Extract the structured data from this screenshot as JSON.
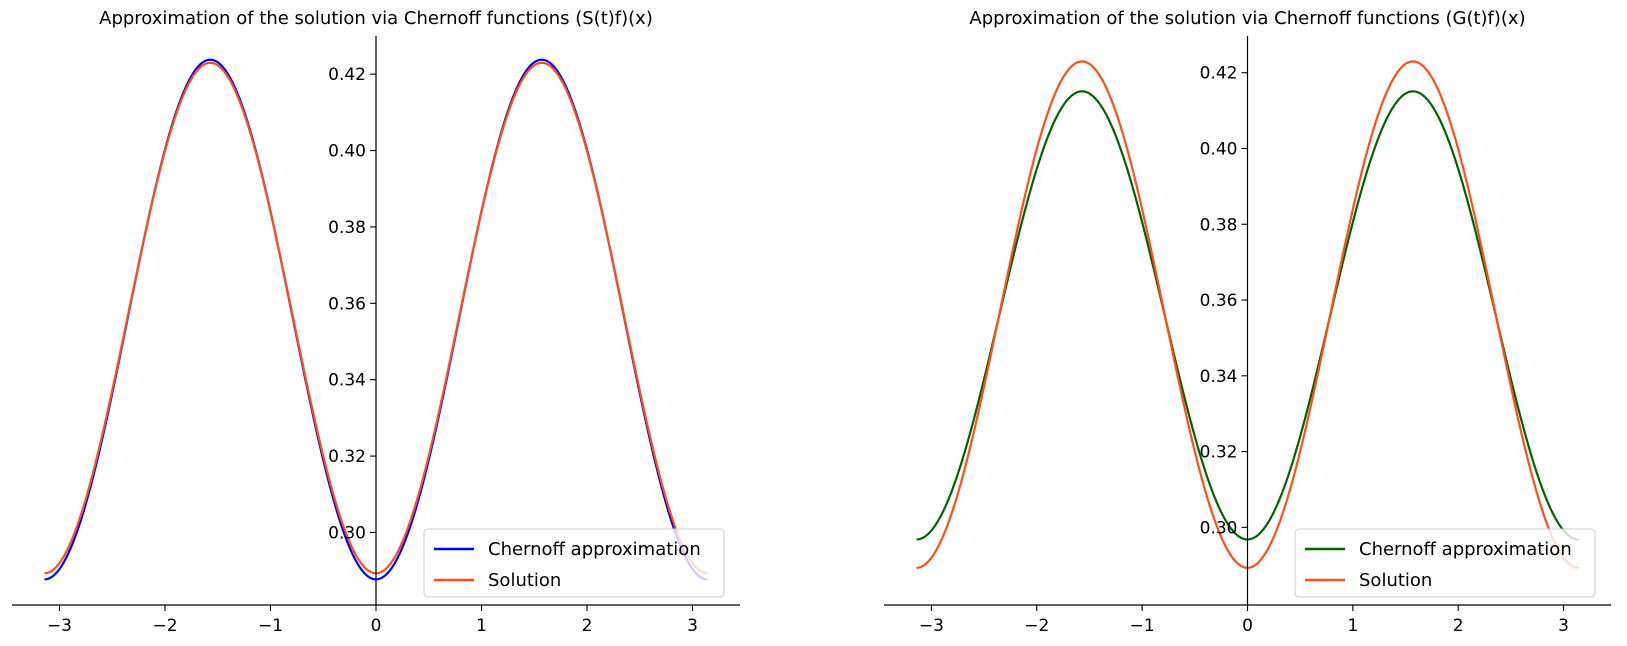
{
  "chart_data": [
    {
      "type": "line",
      "title": "Approximation of the solution via Chernoff functions (S(t)f)(x)",
      "xlabel": "",
      "ylabel": "",
      "xlim": [
        -3.45,
        3.45
      ],
      "ylim": [
        0.281,
        0.43
      ],
      "xticks": [
        -3,
        -2,
        -1,
        0,
        1,
        2,
        3
      ],
      "xtick_labels": [
        "−3",
        "−2",
        "−1",
        "0",
        "1",
        "2",
        "3"
      ],
      "yticks": [
        0.3,
        0.32,
        0.34,
        0.36,
        0.38,
        0.4,
        0.42
      ],
      "ytick_labels": [
        "0.30",
        "0.32",
        "0.34",
        "0.36",
        "0.38",
        "0.40",
        "0.42"
      ],
      "spines": "centered at zero (left spine at x=0, bottom spine at bottom)",
      "legend_position": "bottom-right",
      "x_range": [
        -3.1416,
        3.1416
      ],
      "series": [
        {
          "name": "Chernoff approximation",
          "color": "#0000ff",
          "formula": "A + B*sin(x)^2",
          "A": 0.2877,
          "B": 0.1361,
          "samples": [
            [
              -3.14,
              0.288
            ],
            [
              -2.5,
              0.336
            ],
            [
              -1.5708,
              0.4238
            ],
            [
              -0.5,
              0.319
            ],
            [
              0,
              0.2877
            ],
            [
              0.5,
              0.319
            ],
            [
              1.5708,
              0.4238
            ],
            [
              2.5,
              0.336
            ],
            [
              3.14,
              0.288
            ]
          ]
        },
        {
          "name": "Solution",
          "color": "#ff4f19",
          "formula": "A + B*sin(x)^2",
          "A": 0.2893,
          "B": 0.1337,
          "samples": [
            [
              -3.14,
              0.2893
            ],
            [
              -2.5,
              0.337
            ],
            [
              -1.5708,
              0.423
            ],
            [
              -0.5,
              0.32
            ],
            [
              0,
              0.2893
            ],
            [
              0.5,
              0.32
            ],
            [
              1.5708,
              0.423
            ],
            [
              2.5,
              0.337
            ],
            [
              3.14,
              0.2893
            ]
          ]
        }
      ]
    },
    {
      "type": "line",
      "title": "Approximation of the solution via Chernoff functions (G(t)f)(x)",
      "xlabel": "",
      "ylabel": "",
      "xlim": [
        -3.45,
        3.45
      ],
      "ylim": [
        0.2795,
        0.4297
      ],
      "xticks": [
        -3,
        -2,
        -1,
        0,
        1,
        2,
        3
      ],
      "xtick_labels": [
        "−3",
        "−2",
        "−1",
        "0",
        "1",
        "2",
        "3"
      ],
      "yticks": [
        0.3,
        0.32,
        0.34,
        0.36,
        0.38,
        0.4,
        0.42
      ],
      "ytick_labels": [
        "0.30",
        "0.32",
        "0.34",
        "0.36",
        "0.38",
        "0.40",
        "0.42"
      ],
      "spines": "centered at zero (left spine at x=0, bottom spine at bottom)",
      "legend_position": "bottom-right",
      "x_range": [
        -3.1416,
        3.1416
      ],
      "series": [
        {
          "name": "Chernoff approximation",
          "color": "#006400",
          "formula": "A + B*sin(x)^2",
          "A": 0.2968,
          "B": 0.1183,
          "samples": [
            [
              -3.14,
              0.2968
            ],
            [
              -2.5,
              0.338
            ],
            [
              -1.5708,
              0.4151
            ],
            [
              -0.5,
              0.324
            ],
            [
              0,
              0.2968
            ],
            [
              0.5,
              0.324
            ],
            [
              1.5708,
              0.4151
            ],
            [
              2.5,
              0.338
            ],
            [
              3.14,
              0.2968
            ]
          ]
        },
        {
          "name": "Solution",
          "color": "#ff4f19",
          "formula": "A + B*sin(x)^2",
          "A": 0.2893,
          "B": 0.1337,
          "samples": [
            [
              -3.14,
              0.2893
            ],
            [
              -2.5,
              0.337
            ],
            [
              -1.5708,
              0.423
            ],
            [
              -0.5,
              0.32
            ],
            [
              0,
              0.2893
            ],
            [
              0.5,
              0.32
            ],
            [
              1.5708,
              0.423
            ],
            [
              2.5,
              0.337
            ],
            [
              3.14,
              0.2893
            ]
          ]
        }
      ]
    }
  ]
}
